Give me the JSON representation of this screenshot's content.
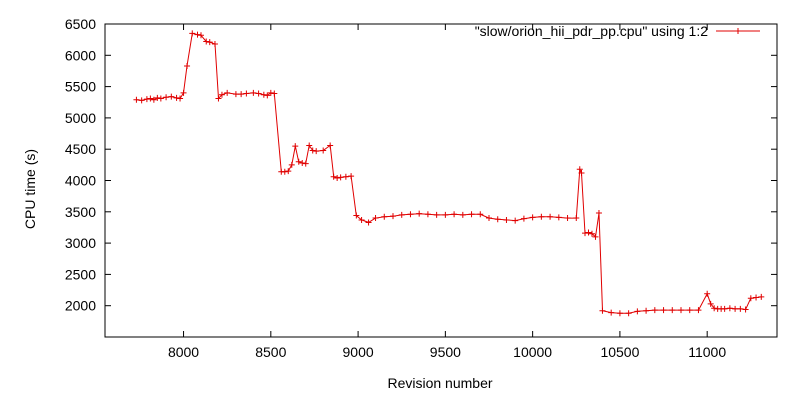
{
  "chart_data": {
    "type": "line",
    "xlabel": "Revision number",
    "ylabel": "CPU time (s)",
    "xlim": [
      7550,
      11400
    ],
    "ylim": [
      1500,
      6500
    ],
    "xticks": [
      8000,
      8500,
      9000,
      9500,
      10000,
      10500,
      11000
    ],
    "yticks": [
      2000,
      2500,
      3000,
      3500,
      4000,
      4500,
      5000,
      5500,
      6000,
      6500
    ],
    "grid": false,
    "legend_position": "top-right",
    "series": [
      {
        "name": "\"slow/orion_hii_pdr_pp.cpu\" using 1:2",
        "color": "#e00000",
        "marker": "plus",
        "x": [
          7730,
          7760,
          7790,
          7810,
          7830,
          7850,
          7870,
          7900,
          7930,
          7960,
          7980,
          8000,
          8020,
          8050,
          8080,
          8100,
          8130,
          8150,
          8180,
          8200,
          8220,
          8250,
          8300,
          8330,
          8360,
          8400,
          8430,
          8460,
          8480,
          8500,
          8520,
          8560,
          8580,
          8600,
          8620,
          8640,
          8660,
          8680,
          8700,
          8720,
          8740,
          8760,
          8800,
          8840,
          8860,
          8880,
          8900,
          8930,
          8960,
          8990,
          9020,
          9060,
          9100,
          9150,
          9200,
          9250,
          9300,
          9350,
          9400,
          9450,
          9500,
          9550,
          9600,
          9650,
          9700,
          9750,
          9800,
          9850,
          9900,
          9950,
          10000,
          10050,
          10100,
          10150,
          10200,
          10250,
          10270,
          10280,
          10300,
          10320,
          10340,
          10360,
          10380,
          10400,
          10450,
          10500,
          10550,
          10600,
          10650,
          10700,
          10750,
          10800,
          10850,
          10900,
          10950,
          11000,
          11020,
          11040,
          11060,
          11080,
          11100,
          11130,
          11160,
          11190,
          11220,
          11250,
          11280,
          11310
        ],
        "y": [
          5290,
          5280,
          5300,
          5310,
          5290,
          5320,
          5310,
          5330,
          5340,
          5320,
          5310,
          5400,
          5830,
          6350,
          6330,
          6320,
          6220,
          6210,
          6180,
          5310,
          5370,
          5400,
          5380,
          5380,
          5390,
          5400,
          5390,
          5370,
          5360,
          5400,
          5390,
          4140,
          4140,
          4150,
          4250,
          4550,
          4300,
          4280,
          4270,
          4560,
          4480,
          4470,
          4480,
          4560,
          4060,
          4040,
          4050,
          4060,
          4070,
          3440,
          3370,
          3330,
          3400,
          3420,
          3430,
          3450,
          3460,
          3470,
          3460,
          3450,
          3450,
          3460,
          3450,
          3460,
          3460,
          3400,
          3380,
          3370,
          3360,
          3390,
          3410,
          3420,
          3420,
          3410,
          3400,
          3400,
          4180,
          4120,
          3160,
          3170,
          3150,
          3100,
          3480,
          1920,
          1890,
          1880,
          1880,
          1910,
          1920,
          1930,
          1930,
          1930,
          1930,
          1930,
          1930,
          2190,
          2030,
          1960,
          1950,
          1950,
          1950,
          1960,
          1950,
          1950,
          1940,
          2120,
          2130,
          2140
        ]
      }
    ]
  }
}
